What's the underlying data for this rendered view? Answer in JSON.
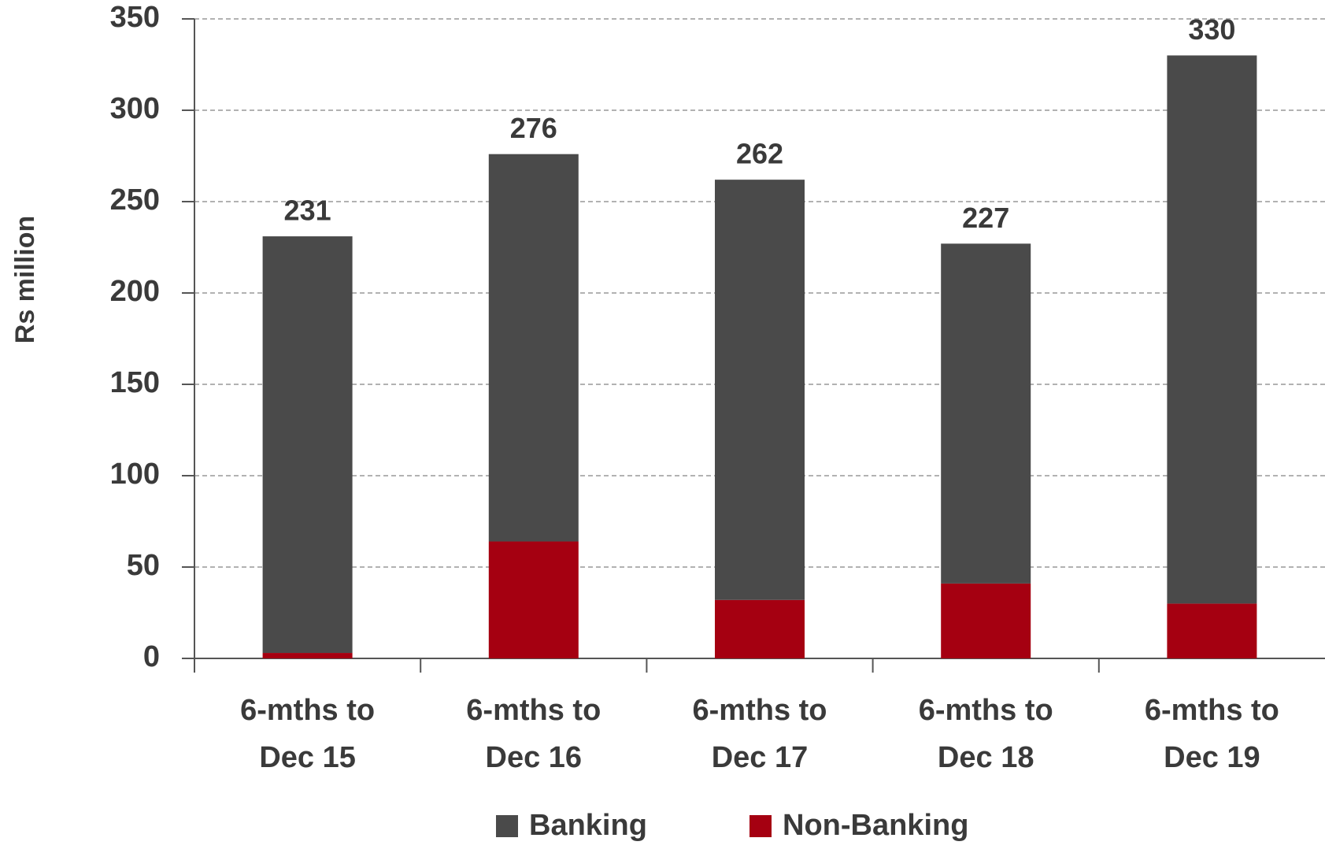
{
  "chart_data": {
    "type": "stacked_bar",
    "y_label": "Rs million",
    "categories": [
      [
        "6-mths to",
        "Dec 15"
      ],
      [
        "6-mths to",
        "Dec 16"
      ],
      [
        "6-mths to",
        "Dec 17"
      ],
      [
        "6-mths to",
        "Dec 18"
      ],
      [
        "6-mths to",
        "Dec 19"
      ]
    ],
    "series": [
      {
        "name": "Banking",
        "color": "#4a4a4a",
        "values": [
          228,
          212,
          230,
          186,
          300
        ]
      },
      {
        "name": "Non-Banking",
        "color": "#a50011",
        "values": [
          3,
          64,
          32,
          41,
          30
        ]
      }
    ],
    "totals": [
      231,
      276,
      262,
      227,
      330
    ],
    "ylim": [
      0,
      350
    ],
    "yticks": [
      0,
      50,
      100,
      150,
      200,
      250,
      300,
      350
    ],
    "grid": true
  }
}
